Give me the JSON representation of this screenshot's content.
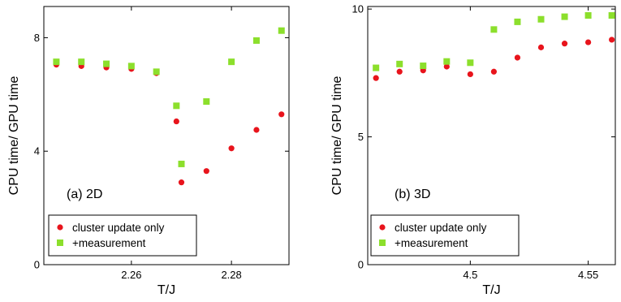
{
  "colors": {
    "cluster": "#e8141c",
    "measurement": "#8cdf2c",
    "axis": "#000000"
  },
  "chart_data": [
    {
      "type": "scatter",
      "panel_label": "(a) 2D",
      "xlabel": "T/J",
      "ylabel": "CPU time/ GPU time",
      "xlim": [
        2.2425,
        2.2915
      ],
      "ylim": [
        0,
        9.1
      ],
      "xticks": [
        2.26,
        2.28
      ],
      "xtick_labels": [
        "2.26",
        "2.28"
      ],
      "yticks": [
        0,
        4,
        8
      ],
      "ytick_labels": [
        "0",
        "4",
        "8"
      ],
      "grid": false,
      "legend": "bottom-left",
      "series": [
        {
          "name": "cluster update only",
          "marker": "circle",
          "color": "#e8141c",
          "x": [
            2.245,
            2.25,
            2.255,
            2.26,
            2.265,
            2.269,
            2.27,
            2.275,
            2.28,
            2.285,
            2.29
          ],
          "y": [
            7.05,
            7.0,
            6.95,
            6.9,
            6.75,
            5.05,
            2.9,
            3.3,
            4.1,
            4.75,
            5.3
          ]
        },
        {
          "name": "+measurement",
          "marker": "square",
          "color": "#8cdf2c",
          "x": [
            2.245,
            2.25,
            2.255,
            2.26,
            2.265,
            2.269,
            2.27,
            2.275,
            2.28,
            2.285,
            2.29
          ],
          "y": [
            7.15,
            7.15,
            7.08,
            7.0,
            6.8,
            5.6,
            3.55,
            5.75,
            7.15,
            7.9,
            8.25
          ]
        }
      ]
    },
    {
      "type": "scatter",
      "panel_label": "(b) 3D",
      "xlabel": "T/J",
      "ylabel": "CPU time/ GPU time",
      "xlim": [
        4.4565,
        4.5615
      ],
      "ylim": [
        0,
        10.1
      ],
      "xticks": [
        4.5,
        4.55
      ],
      "xtick_labels": [
        "4.5",
        "4.55"
      ],
      "yticks": [
        0,
        5,
        10
      ],
      "ytick_labels": [
        "0",
        "5",
        "10"
      ],
      "grid": false,
      "legend": "bottom-left",
      "series": [
        {
          "name": "cluster update only",
          "marker": "circle",
          "color": "#e8141c",
          "x": [
            4.46,
            4.47,
            4.48,
            4.49,
            4.5,
            4.51,
            4.52,
            4.53,
            4.54,
            4.55,
            4.56
          ],
          "y": [
            7.3,
            7.55,
            7.6,
            7.75,
            7.45,
            7.55,
            8.1,
            8.5,
            8.65,
            8.7,
            8.8
          ]
        },
        {
          "name": "+measurement",
          "marker": "square",
          "color": "#8cdf2c",
          "x": [
            4.46,
            4.47,
            4.48,
            4.49,
            4.5,
            4.51,
            4.52,
            4.53,
            4.54,
            4.55,
            4.56
          ],
          "y": [
            7.7,
            7.85,
            7.78,
            7.95,
            7.9,
            9.2,
            9.5,
            9.6,
            9.7,
            9.75,
            9.75
          ]
        }
      ]
    }
  ]
}
